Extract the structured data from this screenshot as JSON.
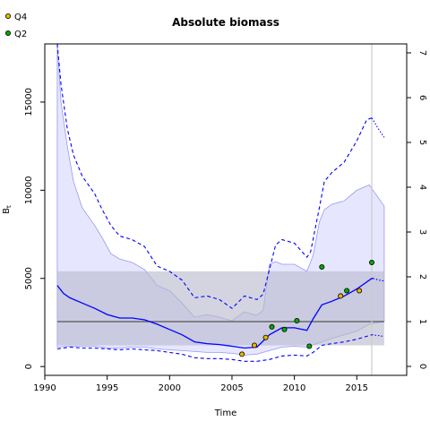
{
  "chart_data": {
    "type": "line",
    "title": "Absolute biomass",
    "xlabel": "Time",
    "ylabel": "B",
    "ylabel_subscript": "t",
    "xlim": [
      1990,
      2019
    ],
    "ylim": [
      -500,
      18300
    ],
    "y2lim": [
      -0.2,
      7.2
    ],
    "x_ticks": [
      1990,
      1995,
      2000,
      2005,
      2010,
      2015
    ],
    "y_ticks": [
      0,
      5000,
      10000,
      15000
    ],
    "y2_ticks": [
      0,
      1,
      2,
      3,
      4,
      5,
      6,
      7
    ],
    "grid": false,
    "legend_position": "top-left",
    "colors": {
      "estimate": "#0000ff",
      "ci_fill": "#e6e6ff",
      "ci_edge": "#9999ee",
      "reference_band": "#b8b8cc",
      "reference_line": "#555555",
      "vline": "#cccccc",
      "Q4": "#e6b800",
      "Q2": "#00aa00"
    },
    "reference_band": [
      1200,
      5400
    ],
    "reference_line": 2550,
    "vertical_line_x": 2016.2,
    "series": [
      {
        "role": "estimate",
        "x": [
          1991.0,
          1991.5,
          1992,
          1993,
          1994,
          1995,
          1996,
          1997,
          1998,
          1999,
          2000,
          2001,
          2002,
          2003,
          2004,
          2005,
          2006,
          2007,
          2008,
          2009,
          2010,
          2011,
          2011.5,
          2012.2,
          2013,
          2014,
          2015,
          2016.2,
          2016.3
        ],
        "values": [
          4600,
          4150,
          3900,
          3600,
          3300,
          2950,
          2750,
          2750,
          2650,
          2400,
          2100,
          1800,
          1400,
          1300,
          1250,
          1150,
          1050,
          1100,
          1800,
          2200,
          2200,
          2050,
          2700,
          3500,
          3700,
          4000,
          4400,
          5000,
          5000
        ]
      },
      {
        "role": "estimate-forecast",
        "x": [
          2016.3,
          2016.8,
          2017.2
        ],
        "values": [
          5000,
          4900,
          4850
        ]
      },
      {
        "role": "lower-ci",
        "x": [
          1991.0,
          1992,
          1993,
          1994,
          1995,
          1996,
          1997,
          1998,
          1999,
          2000,
          2001,
          2002,
          2003,
          2004,
          2005,
          2006,
          2007,
          2008,
          2009,
          2010,
          2011,
          2011.5,
          2012.2,
          2013,
          2014,
          2015,
          2016.2
        ],
        "values": [
          1000,
          1100,
          1050,
          1050,
          1000,
          950,
          1000,
          950,
          900,
          800,
          700,
          500,
          450,
          450,
          400,
          300,
          300,
          400,
          600,
          650,
          600,
          800,
          1200,
          1300,
          1400,
          1550,
          1800
        ]
      },
      {
        "role": "lower-ci-forecast",
        "x": [
          2016.2,
          2016.8,
          2017.2
        ],
        "values": [
          1800,
          1750,
          1700
        ]
      },
      {
        "role": "upper-ci",
        "x": [
          1991.0,
          1991.3,
          1991.8,
          1992.3,
          1993,
          1994,
          1994.6,
          1995.3,
          1996,
          1997,
          1998,
          1999,
          2000,
          2001,
          2002,
          2003,
          2004,
          2005,
          2006,
          2007,
          2007.5,
          2008.5,
          2009,
          2010,
          2011,
          2011.3,
          2012,
          2012.4,
          2013,
          2014,
          2015,
          2015.8,
          2016.2
        ],
        "values": [
          18300,
          16000,
          13500,
          12000,
          10800,
          9800,
          8900,
          8000,
          7400,
          7200,
          6800,
          5700,
          5400,
          4900,
          3900,
          4000,
          3800,
          3300,
          4000,
          3800,
          4100,
          6900,
          7200,
          7000,
          6200,
          6500,
          9000,
          10500,
          11000,
          11600,
          12800,
          14000,
          14100
        ]
      },
      {
        "role": "upper-ci-forecast",
        "x": [
          2016.2,
          2016.8,
          2017.2
        ],
        "values": [
          14100,
          13400,
          13000
        ]
      },
      {
        "role": "ci-fill-upper",
        "x": [
          1991.0,
          1991.3,
          1991.8,
          1992.3,
          1993,
          1994,
          1994.6,
          1995.3,
          1996,
          1997,
          1998,
          1999,
          2000,
          2001,
          2002,
          2003,
          2004,
          2005,
          2006,
          2007,
          2007.5,
          2008,
          2008.5,
          2009,
          2010,
          2011,
          2011.5,
          2012,
          2012.4,
          2013,
          2014,
          2015,
          2016,
          2016.5,
          2017.2
        ],
        "values": [
          18300,
          15000,
          12500,
          10500,
          9000,
          8000,
          7300,
          6400,
          6100,
          5900,
          5500,
          4600,
          4300,
          3600,
          2800,
          2950,
          2800,
          2600,
          3100,
          2900,
          3200,
          5800,
          5950,
          5800,
          5800,
          5400,
          6300,
          8200,
          8900,
          9200,
          9400,
          10000,
          10300,
          9800,
          9100
        ]
      },
      {
        "role": "ci-fill-lower",
        "x": [
          1991.0,
          1992,
          1993,
          1994,
          1995,
          1996,
          1997,
          1998,
          1999,
          2000,
          2001,
          2002,
          2003,
          2004,
          2005,
          2006,
          2007,
          2008,
          2009,
          2010,
          2011,
          2012,
          2013,
          2014,
          2015,
          2016,
          2017.2
        ],
        "values": [
          1100,
          1150,
          1150,
          1150,
          1050,
          1050,
          1100,
          1100,
          1000,
          950,
          900,
          850,
          800,
          800,
          750,
          650,
          700,
          900,
          1100,
          1150,
          1100,
          1350,
          1600,
          1800,
          2000,
          2400,
          2550
        ]
      }
    ],
    "points": [
      {
        "name": "Q4",
        "x": [
          2005.8,
          2006.8,
          2007.7,
          2013.7,
          2015.2
        ],
        "values": [
          700,
          1200,
          1650,
          4000,
          4300
        ]
      },
      {
        "name": "Q2",
        "x": [
          2008.2,
          2009.2,
          2010.2,
          2011.2,
          2012.2,
          2014.2,
          2016.2
        ],
        "values": [
          2250,
          2100,
          2600,
          1150,
          5650,
          4300,
          5900
        ]
      }
    ]
  }
}
